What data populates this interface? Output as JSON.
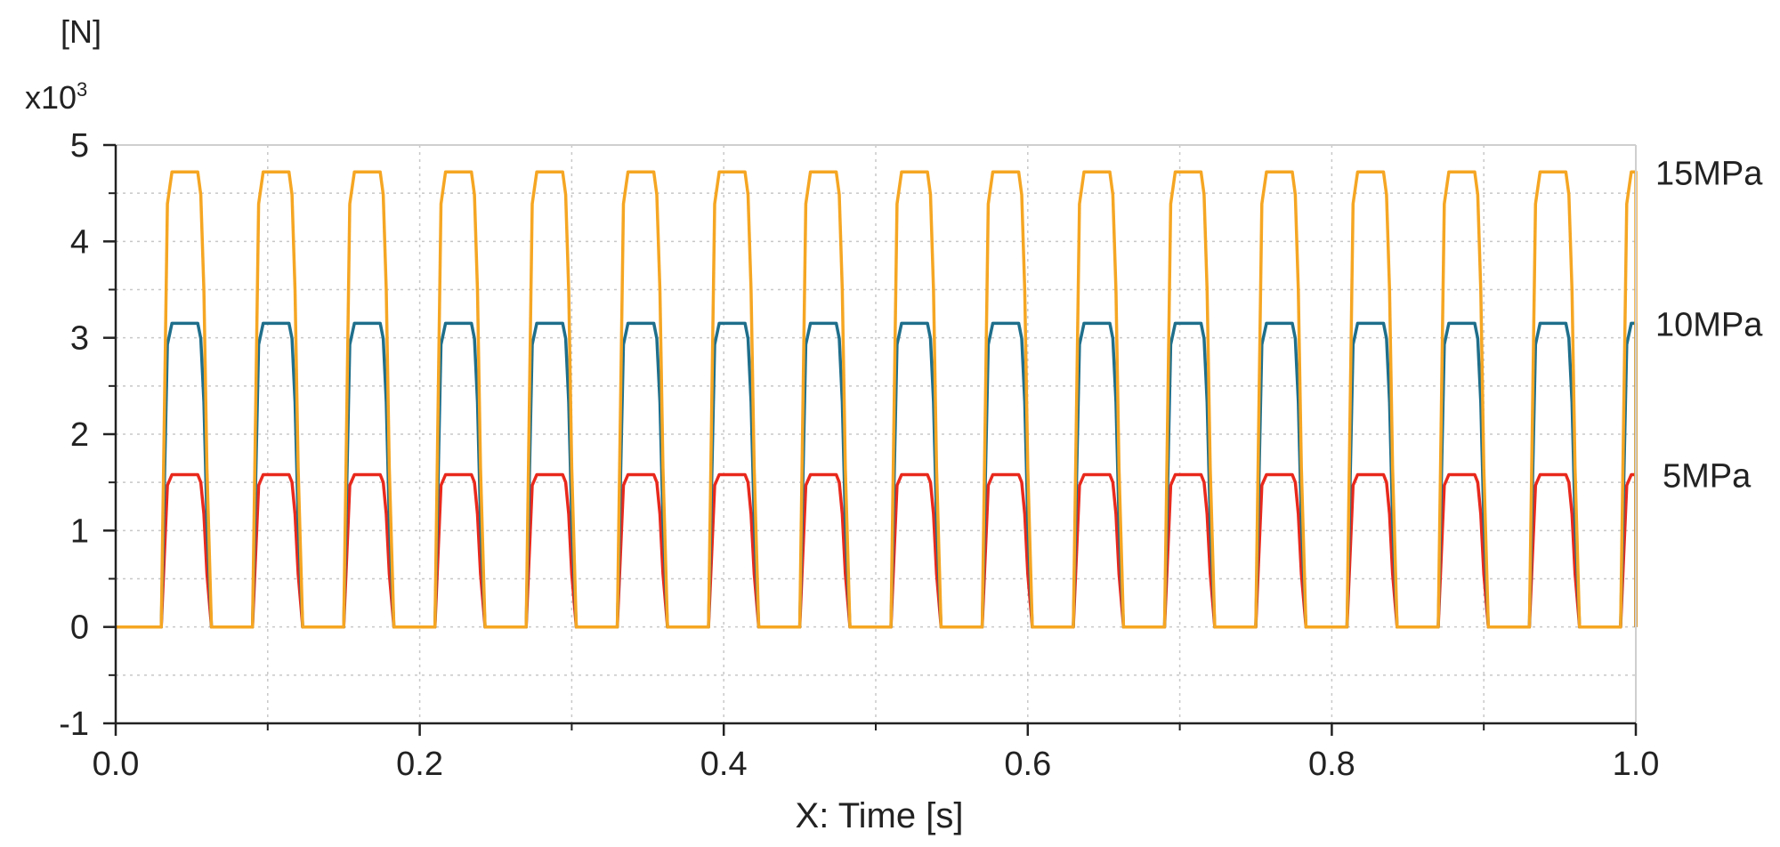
{
  "chart_data": {
    "type": "line",
    "title": "",
    "ylabel_unit": "[N]",
    "y_multiplier": "x10",
    "y_multiplier_exp": "3",
    "xlabel": "X: Time [s]",
    "xlim": [
      0.0,
      1.0
    ],
    "ylim": [
      -1,
      5
    ],
    "x_ticks": [
      0.0,
      0.2,
      0.4,
      0.6,
      0.8,
      1.0
    ],
    "x_tick_labels": [
      "0.0",
      "0.2",
      "0.4",
      "0.6",
      "0.8",
      "1.0"
    ],
    "y_ticks": [
      -1,
      0,
      1,
      2,
      3,
      4,
      5
    ],
    "y_tick_labels": [
      "-1",
      "0",
      "1",
      "2",
      "3",
      "4",
      "5"
    ],
    "grid": true,
    "pulse_period": 0.06,
    "pulse_first_rise": 0.03,
    "pulse_cycles": 17,
    "series": [
      {
        "name": "15MPa",
        "label": "15MPa",
        "color": "#f5a623",
        "amplitude": 4.72
      },
      {
        "name": "10MPa",
        "label": "10MPa",
        "color": "#1f6f8b",
        "amplitude": 3.15
      },
      {
        "name": "5MPa",
        "label": "5MPa",
        "color": "#e8291c",
        "amplitude": 1.58
      }
    ]
  }
}
